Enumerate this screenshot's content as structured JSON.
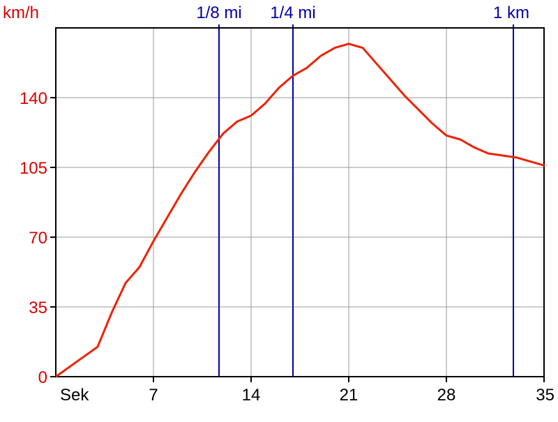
{
  "chart_data": {
    "type": "line",
    "ylabel": "km/h",
    "xlabel": "Sek",
    "xlim": [
      0,
      35
    ],
    "ylim": [
      0,
      175
    ],
    "x_ticks": [
      7,
      14,
      21,
      28,
      35
    ],
    "y_ticks": [
      0,
      35,
      70,
      105,
      140
    ],
    "grid": true,
    "colors": {
      "line": "#ee2200",
      "y_axis_text": "#dd0000",
      "markers": "#0000aa",
      "grid": "#999999",
      "axis": "#000000"
    },
    "markers": [
      {
        "label": "1/8 mi",
        "x": 11.7
      },
      {
        "label": "1/4 mi",
        "x": 17.0
      },
      {
        "label": "1 km",
        "x": 32.8
      }
    ],
    "series": [
      {
        "x": [
          0,
          1,
          2,
          3,
          4,
          5,
          6,
          7,
          8,
          9,
          10,
          11,
          12,
          13,
          14,
          15,
          16,
          17,
          18,
          19,
          20,
          21,
          22,
          23,
          24,
          25,
          26,
          27,
          28,
          29,
          30,
          31,
          32,
          33,
          34,
          35
        ],
        "y": [
          0,
          5,
          10,
          15,
          32,
          47,
          55,
          68,
          80,
          92,
          103,
          113,
          122,
          128,
          131,
          137,
          145,
          151,
          155,
          161,
          165,
          167,
          165,
          157,
          149,
          141,
          134,
          127,
          121,
          119,
          115,
          112,
          111,
          110,
          108,
          106
        ]
      }
    ]
  }
}
